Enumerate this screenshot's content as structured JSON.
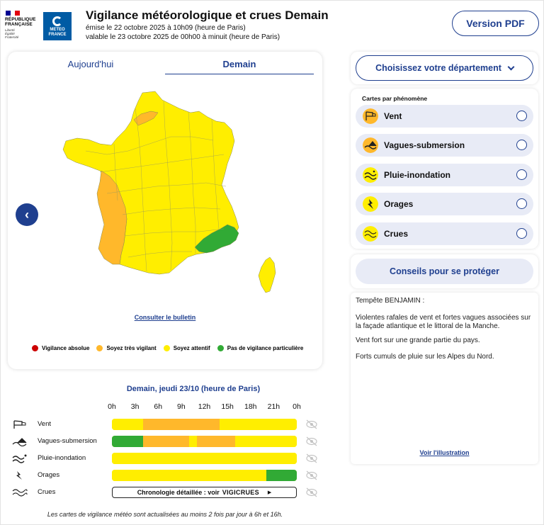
{
  "header": {
    "rf_lines": [
      "RÉPUBLIQUE",
      "FRANÇAISE"
    ],
    "rf_motto": [
      "Liberté",
      "Égalité",
      "Fraternité"
    ],
    "mf_lines": [
      "METEO",
      "FRANCE"
    ],
    "title": "Vigilance météorologique et crues Demain",
    "issued": "émise le 22 octobre 2025 à 10h09 (heure de Paris)",
    "valid": "valable le 23 octobre 2025 de 00h00 à minuit (heure de Paris)",
    "pdf_label": "Version PDF"
  },
  "map": {
    "tabs": [
      "Aujourd'hui",
      "Demain"
    ],
    "active_tab": "Demain",
    "prev_label": "‹",
    "bulletin_link": "Consulter le bulletin",
    "colors": {
      "yellow": "#ffee00",
      "orange": "#ffb82b",
      "green": "#31aa35",
      "red": "#cc0000"
    },
    "legend": [
      {
        "label": "Vigilance absolue",
        "color": "#cc0000"
      },
      {
        "label": "Soyez très vigilant",
        "color": "#ffb82b"
      },
      {
        "label": "Soyez attentif",
        "color": "#ffee00"
      },
      {
        "label": "Pas de vigilance particulière",
        "color": "#31aa35"
      }
    ]
  },
  "timeline": {
    "title": "Demain, jeudi 23/10 (heure de Paris)",
    "hours": [
      "0h",
      "3h",
      "6h",
      "9h",
      "12h",
      "15h",
      "18h",
      "21h",
      "0h"
    ],
    "rows": [
      {
        "label": "Vent",
        "icon": "wind-icon",
        "segments": [
          {
            "from": 0,
            "to": 4,
            "level": "yellow"
          },
          {
            "from": 4,
            "to": 14,
            "level": "orange"
          },
          {
            "from": 14,
            "to": 24,
            "level": "yellow"
          }
        ]
      },
      {
        "label": "Vagues-submersion",
        "icon": "waves-icon",
        "segments": [
          {
            "from": 0,
            "to": 4,
            "level": "green"
          },
          {
            "from": 4,
            "to": 10,
            "level": "orange"
          },
          {
            "from": 10,
            "to": 11,
            "level": "yellow"
          },
          {
            "from": 11,
            "to": 16,
            "level": "orange"
          },
          {
            "from": 16,
            "to": 24,
            "level": "yellow"
          }
        ]
      },
      {
        "label": "Pluie-inondation",
        "icon": "rain-icon",
        "segments": [
          {
            "from": 0,
            "to": 24,
            "level": "yellow"
          }
        ]
      },
      {
        "label": "Orages",
        "icon": "storm-icon",
        "segments": [
          {
            "from": 0,
            "to": 20,
            "level": "yellow"
          },
          {
            "from": 20,
            "to": 24,
            "level": "green"
          }
        ]
      }
    ],
    "crues": {
      "label": "Crues",
      "icon": "flood-icon",
      "chrono_text": "Chronologie détaillée : voir",
      "vigicrues": "VIGICRUES"
    },
    "footnote": "Les cartes de vigilance météo sont actualisées au moins 2 fois par jour à 6h et 16h."
  },
  "sidebar": {
    "dept_label": "Choisissez votre département",
    "pheno_title": "Cartes par phénomène",
    "phenomena": [
      {
        "label": "Vent",
        "icon": "wind-icon",
        "color": "#ffb82b"
      },
      {
        "label": "Vagues-submersion",
        "icon": "waves-icon",
        "color": "#ffb82b"
      },
      {
        "label": "Pluie-inondation",
        "icon": "rain-icon",
        "color": "#ffee00"
      },
      {
        "label": "Orages",
        "icon": "storm-icon",
        "color": "#ffee00"
      },
      {
        "label": "Crues",
        "icon": "flood-icon",
        "color": "#ffee00"
      }
    ],
    "conseils_label": "Conseils pour se protéger",
    "text_lines": [
      "Tempête BENJAMIN  :",
      "Violentes rafales de vent et fortes vagues associées sur la façade atlantique et le littoral de la Manche.",
      "Vent fort sur une grande partie du pays.",
      "Forts cumuls de pluie sur les Alpes du Nord."
    ],
    "illus_link": "Voir l'illustration"
  }
}
